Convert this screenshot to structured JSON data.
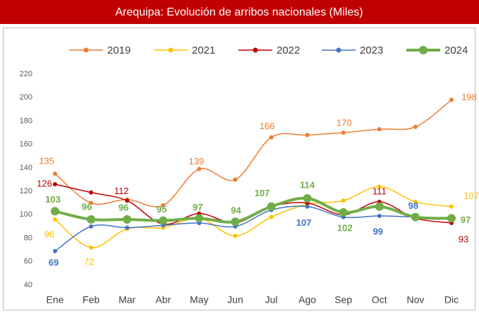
{
  "chart_data": {
    "type": "line",
    "title": "Arequipa: Evolución de arribos nacionales (Miles)",
    "categories": [
      "Ene",
      "Feb",
      "Mar",
      "Abr",
      "May",
      "Jun",
      "Jul",
      "Ago",
      "Sep",
      "Oct",
      "Nov",
      "Dic"
    ],
    "ylim": [
      40,
      220
    ],
    "yticks": [
      40,
      60,
      80,
      100,
      120,
      140,
      160,
      180,
      200,
      220
    ],
    "grid": false,
    "legend": "top",
    "series": [
      {
        "name": "2019",
        "color": "#ed7d31",
        "values": [
          135,
          110,
          113,
          108,
          139,
          130,
          166,
          168,
          170,
          173,
          175,
          198
        ],
        "value_labels": [
          "135",
          null,
          null,
          null,
          "139",
          null,
          "166",
          null,
          "170",
          null,
          null,
          "198"
        ]
      },
      {
        "name": "2021",
        "color": "#ffc000",
        "values": [
          96,
          72,
          88,
          89,
          97,
          82,
          98,
          109,
          112,
          124,
          111,
          107
        ],
        "value_labels": [
          "96",
          "72",
          null,
          null,
          null,
          null,
          null,
          null,
          null,
          null,
          null,
          "107"
        ]
      },
      {
        "name": "2022",
        "color": "#c00000",
        "values": [
          126,
          119,
          112,
          92,
          101,
          93,
          107,
          110,
          100,
          111,
          97,
          93
        ],
        "value_labels": [
          "126",
          null,
          "112",
          null,
          null,
          null,
          null,
          null,
          null,
          "111",
          null,
          "93"
        ]
      },
      {
        "name": "2023",
        "color": "#4472c4",
        "values": [
          69,
          90,
          89,
          91,
          93,
          90,
          104,
          107,
          98,
          99,
          98,
          97
        ],
        "value_labels": [
          "69",
          null,
          null,
          null,
          null,
          null,
          null,
          "107",
          null,
          "99",
          "98",
          null
        ]
      },
      {
        "name": "2024",
        "color": "#70ad47",
        "values": [
          103,
          96,
          96,
          95,
          97,
          94,
          107,
          114,
          102,
          107,
          98,
          97
        ],
        "value_labels": [
          "103",
          "96",
          "96",
          "95",
          "97",
          "94",
          "107",
          "114",
          "102",
          null,
          null,
          "97"
        ]
      }
    ]
  }
}
